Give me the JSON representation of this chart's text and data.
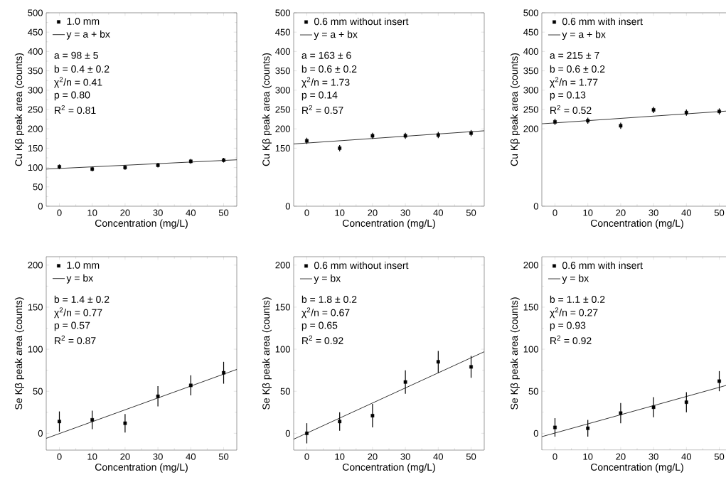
{
  "chart_data": [
    {
      "type": "scatter",
      "xlabel": "Concentration (mg/L)",
      "ylabel": "Cu Kβ peak area (counts)",
      "xlim": [
        -4,
        54
      ],
      "xticks": [
        0,
        10,
        20,
        30,
        40,
        50
      ],
      "ylim": [
        0,
        500
      ],
      "yticks": [
        0,
        50,
        100,
        150,
        200,
        250,
        300,
        350,
        400,
        450,
        500
      ],
      "legend": "top left",
      "annotations": [
        "a = 98 ± 5",
        "b = 0.4 ± 0.2",
        "χ$^{2}$/n = 0.41",
        "p = 0.80",
        "R$^{2}$ = 0.81"
      ],
      "series": [
        {
          "name": "1.0 mm",
          "marker": "square",
          "color": "#000000",
          "x": [
            0,
            10,
            20,
            30,
            40,
            50
          ],
          "values": [
            102,
            96,
            100,
            106,
            116,
            119
          ],
          "errors": [
            6,
            6,
            6,
            6,
            6,
            6
          ]
        },
        {
          "name": "y = a + bx",
          "type": "line",
          "color": "#000000",
          "x": [
            -4,
            54
          ],
          "values": [
            96,
            120
          ]
        }
      ]
    },
    {
      "type": "scatter",
      "xlabel": "Concentration (mg/L)",
      "ylabel": "Cu Kβ peak area (counts)",
      "xlim": [
        -4,
        54
      ],
      "xticks": [
        0,
        10,
        20,
        30,
        40,
        50
      ],
      "ylim": [
        0,
        500
      ],
      "yticks": [
        0,
        150,
        200,
        250,
        300,
        350,
        400,
        450,
        500
      ],
      "legend": "top left",
      "annotations": [
        "a = 163 ± 6",
        "b = 0.6 ± 0.2",
        "χ$^{2}$/n = 1.73",
        "p = 0.14",
        "R$^{2}$ = 0.57"
      ],
      "series": [
        {
          "name": "0.6 mm without insert",
          "marker": "square",
          "color": "#000000",
          "x": [
            0,
            10,
            20,
            30,
            40,
            50
          ],
          "values": [
            169,
            150,
            182,
            182,
            184,
            189
          ],
          "errors": [
            8,
            8,
            8,
            8,
            8,
            8
          ]
        },
        {
          "name": "y = a + bx",
          "type": "line",
          "color": "#000000",
          "x": [
            -4,
            54
          ],
          "values": [
            161,
            195
          ]
        }
      ]
    },
    {
      "type": "scatter",
      "xlabel": "Concentration (mg/L)",
      "ylabel": "Cu Kβ peak area (counts)",
      "xlim": [
        -4,
        54
      ],
      "xticks": [
        0,
        10,
        20,
        30,
        40,
        50
      ],
      "ylim": [
        0,
        500
      ],
      "yticks": [
        0,
        200,
        250,
        300,
        350,
        400,
        450,
        500
      ],
      "legend": "top left",
      "annotations": [
        "a = 215 ± 7",
        "b = 0.6 ± 0.2",
        "χ$^{2}$/n = 1.77",
        "p = 0.13",
        "R$^{2}$ = 0.52"
      ],
      "series": [
        {
          "name": "0.6 mm with insert",
          "marker": "square",
          "color": "#000000",
          "x": [
            0,
            10,
            20,
            30,
            40,
            50
          ],
          "values": [
            218,
            221,
            208,
            249,
            242,
            245
          ],
          "errors": [
            8,
            8,
            8,
            8,
            8,
            8
          ]
        },
        {
          "name": "y = a + bx",
          "type": "line",
          "color": "#000000",
          "x": [
            -4,
            54
          ],
          "values": [
            213,
            247
          ]
        }
      ]
    },
    {
      "type": "scatter",
      "xlabel": "Concentration (mg/L)",
      "ylabel": "Se Kβ peak area (counts)",
      "xlim": [
        -4,
        54
      ],
      "xticks": [
        0,
        10,
        20,
        30,
        40,
        50
      ],
      "ylim": [
        -20,
        210
      ],
      "yticks": [
        0,
        50,
        100,
        150,
        200
      ],
      "legend": "top left",
      "annotations": [
        "b = 1.4 ± 0.2",
        "χ$^{2}$/n = 0.77",
        "p = 0.57",
        "R$^{2}$ = 0.87"
      ],
      "series": [
        {
          "name": "1.0 mm",
          "marker": "square",
          "color": "#000000",
          "x": [
            0,
            10,
            20,
            30,
            40,
            50
          ],
          "values": [
            14,
            16,
            12,
            44,
            57,
            72
          ],
          "errors": [
            12,
            11,
            11,
            12,
            12,
            13
          ]
        },
        {
          "name": "y = bx",
          "type": "line",
          "color": "#000000",
          "x": [
            -4,
            54
          ],
          "values": [
            -6,
            76
          ]
        }
      ]
    },
    {
      "type": "scatter",
      "xlabel": "Concentration (mg/L)",
      "ylabel": "Se Kβ peak area (counts)",
      "xlim": [
        -4,
        54
      ],
      "xticks": [
        0,
        10,
        20,
        30,
        40,
        50
      ],
      "ylim": [
        -20,
        210
      ],
      "yticks": [
        0,
        50,
        100,
        150,
        200
      ],
      "legend": "top left",
      "annotations": [
        "b = 1.8 ± 0.2",
        "χ$^{2}$/n = 0.67",
        "p = 0.65",
        "R$^{2}$ = 0.92"
      ],
      "series": [
        {
          "name": "0.6 mm without insert",
          "marker": "square",
          "color": "#000000",
          "x": [
            0,
            10,
            20,
            30,
            40,
            50
          ],
          "values": [
            0,
            14,
            21,
            61,
            85,
            79
          ],
          "errors": [
            12,
            11,
            14,
            14,
            13,
            13
          ]
        },
        {
          "name": "y = bx",
          "type": "line",
          "color": "#000000",
          "x": [
            -4,
            54
          ],
          "values": [
            -7,
            97
          ]
        }
      ]
    },
    {
      "type": "scatter",
      "xlabel": "Concentration (mg/L)",
      "ylabel": "Se Kβ peak area (counts)",
      "xlim": [
        -4,
        54
      ],
      "xticks": [
        0,
        10,
        20,
        30,
        40,
        50
      ],
      "ylim": [
        -20,
        210
      ],
      "yticks": [
        0,
        50,
        100,
        150,
        200
      ],
      "legend": "top left",
      "annotations": [
        "b = 1.1 ± 0.2",
        "χ$^{2}$/n = 0.27",
        "p = 0.93",
        "R$^{2}$ = 0.92"
      ],
      "series": [
        {
          "name": "0.6 mm with insert",
          "marker": "square",
          "color": "#000000",
          "x": [
            0,
            10,
            20,
            30,
            40,
            50
          ],
          "values": [
            7,
            6,
            24,
            31,
            37,
            62
          ],
          "errors": [
            11,
            10,
            12,
            12,
            12,
            12
          ]
        },
        {
          "name": "y = bx",
          "type": "line",
          "color": "#000000",
          "x": [
            -4,
            54
          ],
          "values": [
            -4,
            59
          ]
        }
      ]
    }
  ]
}
